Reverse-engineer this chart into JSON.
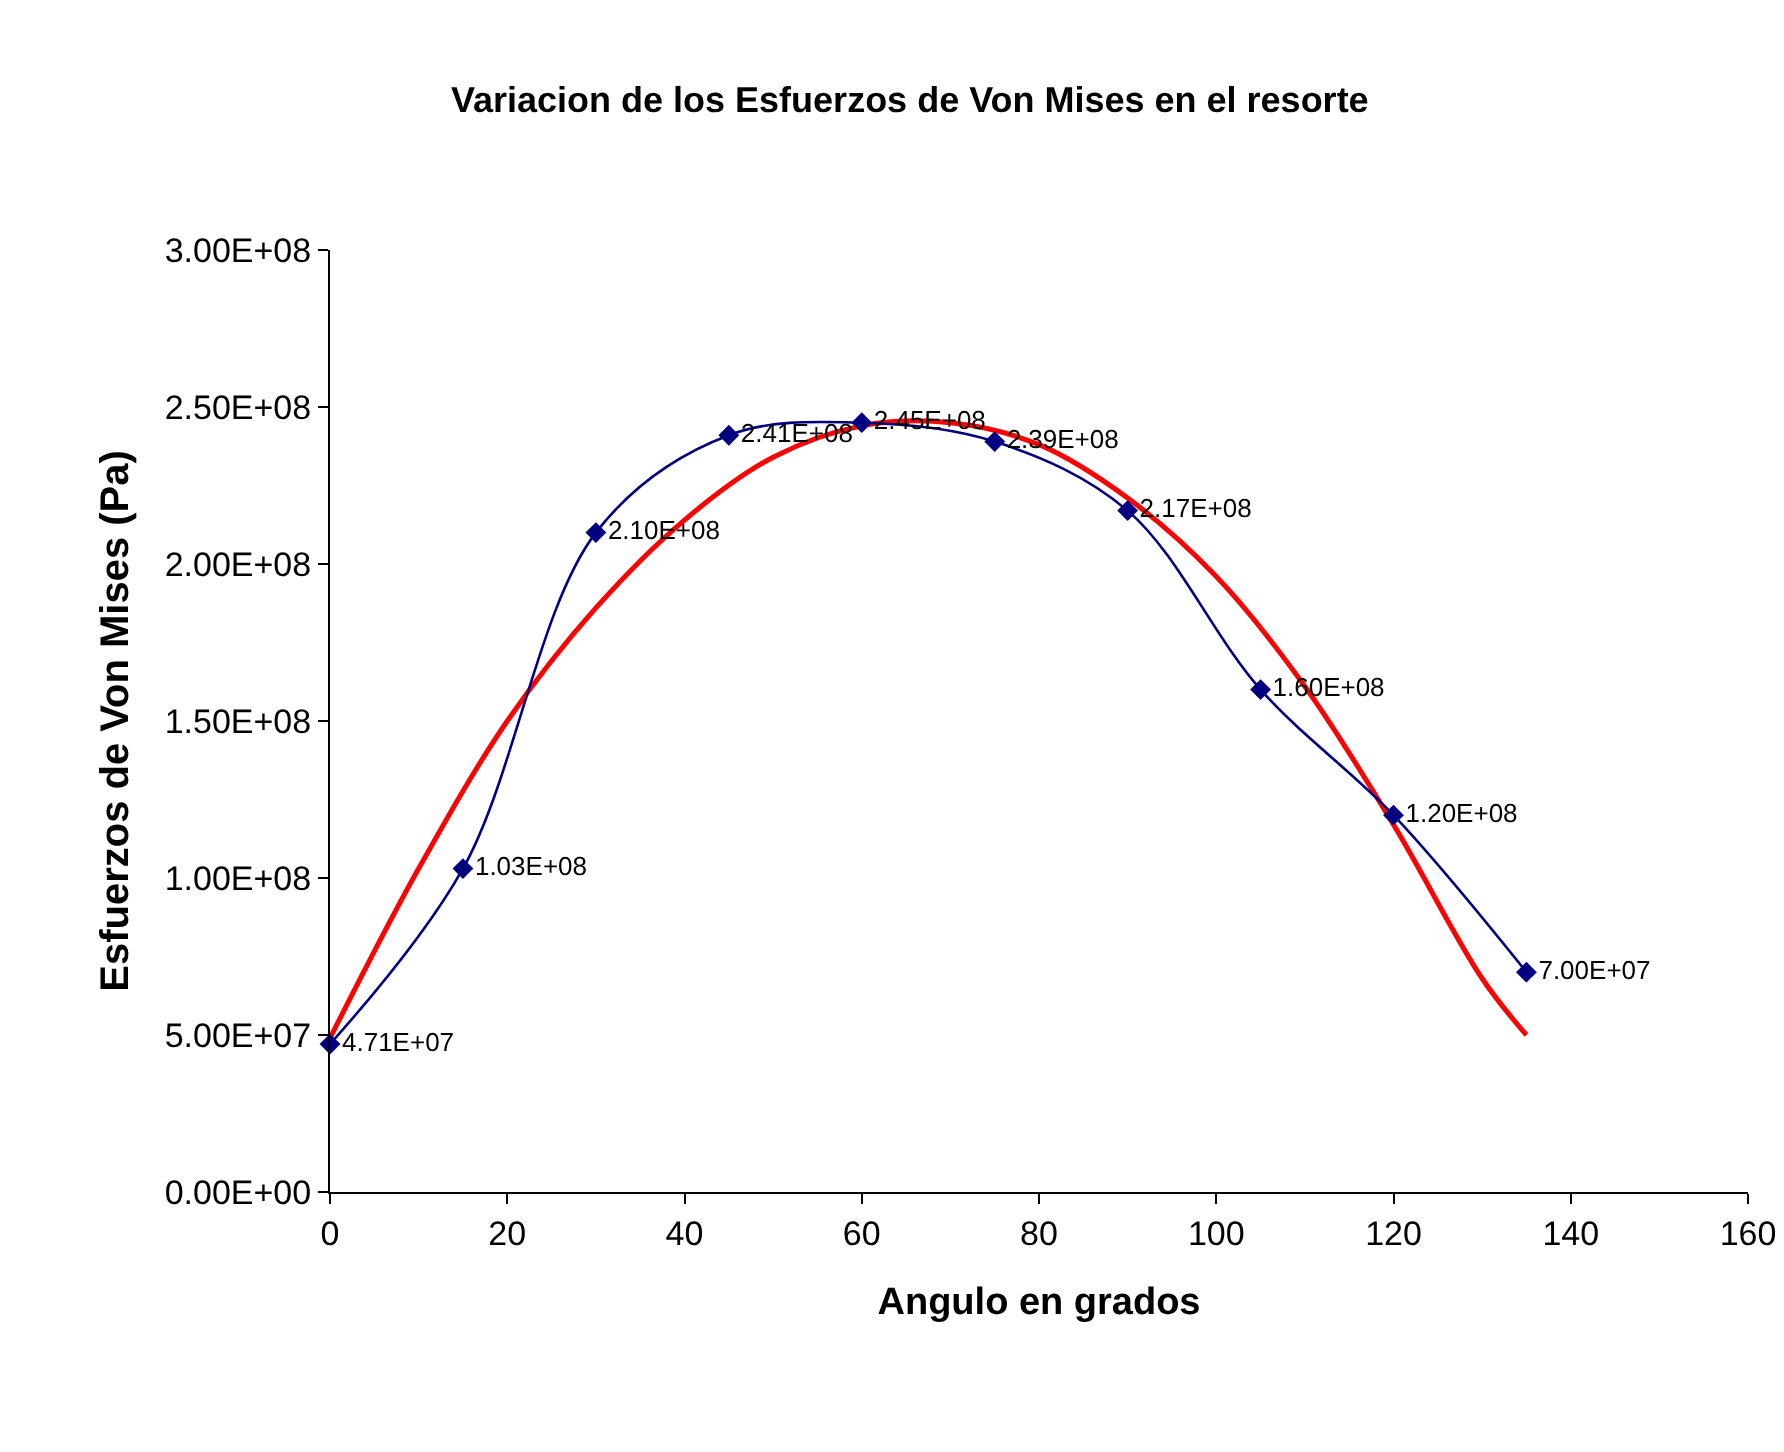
{
  "chart_data": {
    "type": "line",
    "title": "Variacion de los Esfuerzos de Von Mises en el resorte",
    "xlabel": "Angulo en grados",
    "ylabel": "Esfuerzos de Von Mises (Pa)",
    "x": [
      0,
      15,
      30,
      45,
      60,
      75,
      90,
      105,
      120,
      135
    ],
    "series": [
      {
        "color": "#000080",
        "marker": "diamond",
        "values": [
          47100000,
          103000000,
          210000000,
          241000000,
          245000000,
          239000000,
          217000000,
          160000000,
          120000000,
          70000000
        ],
        "value_labels": [
          "4.71E+07",
          "1.03E+08",
          "2.10E+08",
          "2.41E+08",
          "2.45E+08",
          "2.39E+08",
          "2.17E+08",
          "1.60E+08",
          "1.20E+08",
          "7.00E+07"
        ]
      },
      {
        "color": "#ff0000",
        "marker": "none",
        "x": [
          0,
          10,
          20,
          30,
          40,
          50,
          60,
          70,
          80,
          90,
          100,
          110,
          120,
          130,
          135
        ],
        "values": [
          49000000,
          103000000,
          150000000,
          186000000,
          214000000,
          234000000,
          244000000,
          245000000,
          238000000,
          221000000,
          196000000,
          161000000,
          117000000,
          68000000,
          50000000
        ]
      }
    ],
    "xlim": [
      0,
      160
    ],
    "xticks": [
      0,
      20,
      40,
      60,
      80,
      100,
      120,
      140,
      160
    ],
    "ylim": [
      0,
      300000000
    ],
    "yticks": [
      {
        "value": 0,
        "label": "0.00E+00"
      },
      {
        "value": 50000000,
        "label": "5.00E+07"
      },
      {
        "value": 100000000,
        "label": "1.00E+08"
      },
      {
        "value": 150000000,
        "label": "1.50E+08"
      },
      {
        "value": 200000000,
        "label": "2.00E+08"
      },
      {
        "value": 250000000,
        "label": "2.50E+08"
      },
      {
        "value": 300000000,
        "label": "3.00E+08"
      }
    ],
    "grid": false,
    "legend": false
  }
}
